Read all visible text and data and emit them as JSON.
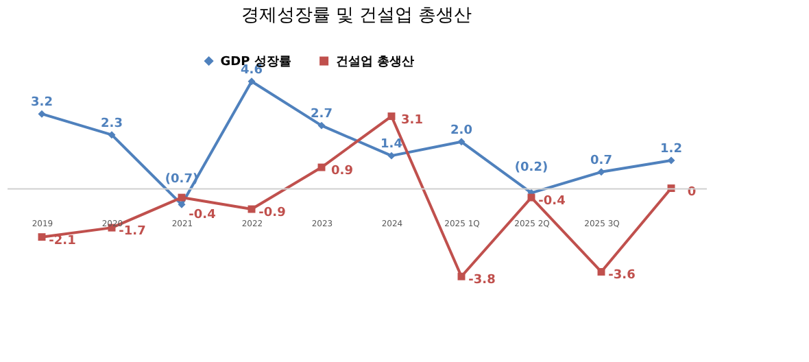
{
  "chart_data": {
    "type": "line",
    "title": "경제성장률 및 건설업 총생산",
    "categories": [
      "2019",
      "2020",
      "2021",
      "2022",
      "2023",
      "2024",
      "2025 1Q",
      "2025 2Q",
      "2025 3Q",
      null
    ],
    "series": [
      {
        "name": "GDP 성장률",
        "color": "#4f81bd",
        "marker": "diamond",
        "values": [
          3.2,
          2.3,
          -0.7,
          4.6,
          2.7,
          1.4,
          2.0,
          -0.2,
          0.7,
          1.2
        ],
        "value_labels": [
          "3.2",
          "2.3",
          "(0.7)",
          "4.6",
          "2.7",
          "1.4",
          "2.0",
          "(0.2)",
          "0.7",
          "1.2"
        ]
      },
      {
        "name": "건설업 총생산",
        "color": "#c0504d",
        "marker": "square",
        "values": [
          -2.1,
          -1.7,
          -0.4,
          -0.9,
          0.9,
          3.1,
          -3.8,
          -0.4,
          -3.6,
          0
        ],
        "value_labels": [
          "-2.1",
          "-1.7",
          "-0.4",
          "-0.9",
          "0.9",
          "3.1",
          "-3.8",
          "-0.4",
          "-3.6",
          "0"
        ]
      }
    ],
    "legend": "top",
    "grid": false,
    "line_style": "solid"
  }
}
